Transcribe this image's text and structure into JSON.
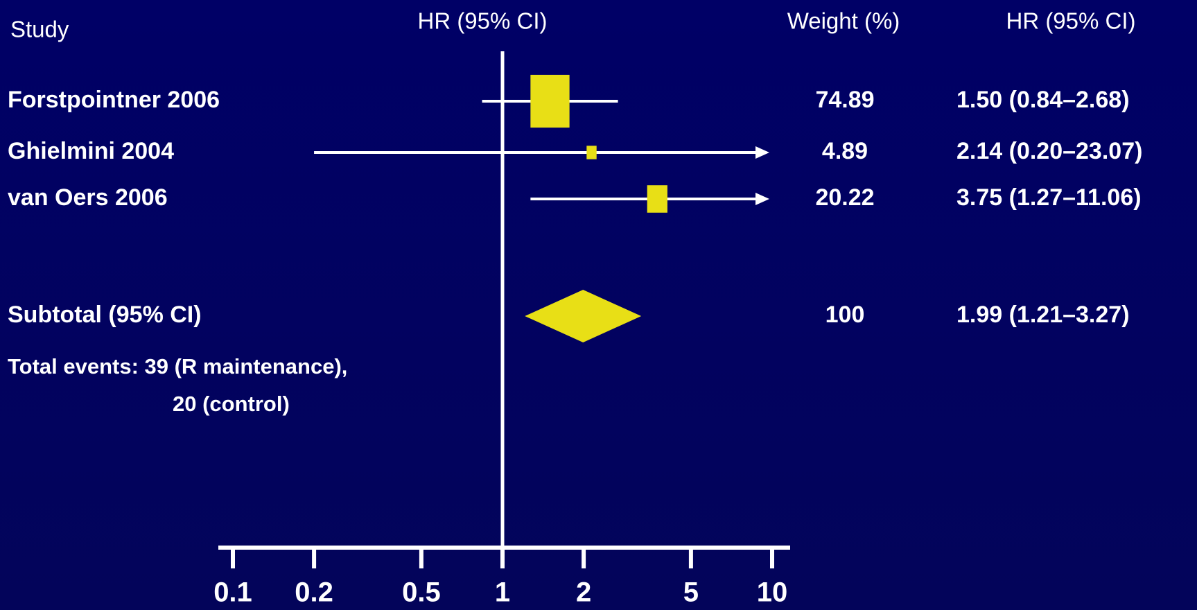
{
  "chart_data": {
    "type": "forest",
    "study_header": "Study",
    "axis_header": "HR (95% CI)",
    "weight_header": "Weight (%)",
    "ci_header": "HR (95% CI)",
    "categories": [
      "Forstpointner 2006",
      "Ghielmini 2004",
      "van Oers 2006"
    ],
    "values": [
      1.5,
      2.14,
      3.75
    ],
    "lower": [
      0.84,
      0.2,
      1.27
    ],
    "upper": [
      2.68,
      23.07,
      11.06
    ],
    "weights": [
      74.89,
      4.89,
      20.22
    ],
    "value_labels": [
      "1.50 (0.84–2.68)",
      "2.14 (0.20–23.07)",
      "3.75 (1.27–11.06)"
    ],
    "subtotal": {
      "name": "Subtotal (95% CI)",
      "value": 1.99,
      "lower": 1.21,
      "upper": 3.27,
      "weight": 100,
      "value_label": "1.99 (1.21–3.27)"
    },
    "notes": [
      "Total events: 39 (R maintenance),",
      "20 (control)"
    ],
    "reference": 1,
    "log_x": true,
    "xlim": [
      0.1,
      10
    ],
    "xticks": [
      0.1,
      0.2,
      0.5,
      1,
      2,
      5,
      10
    ],
    "color": "#e8df16"
  }
}
